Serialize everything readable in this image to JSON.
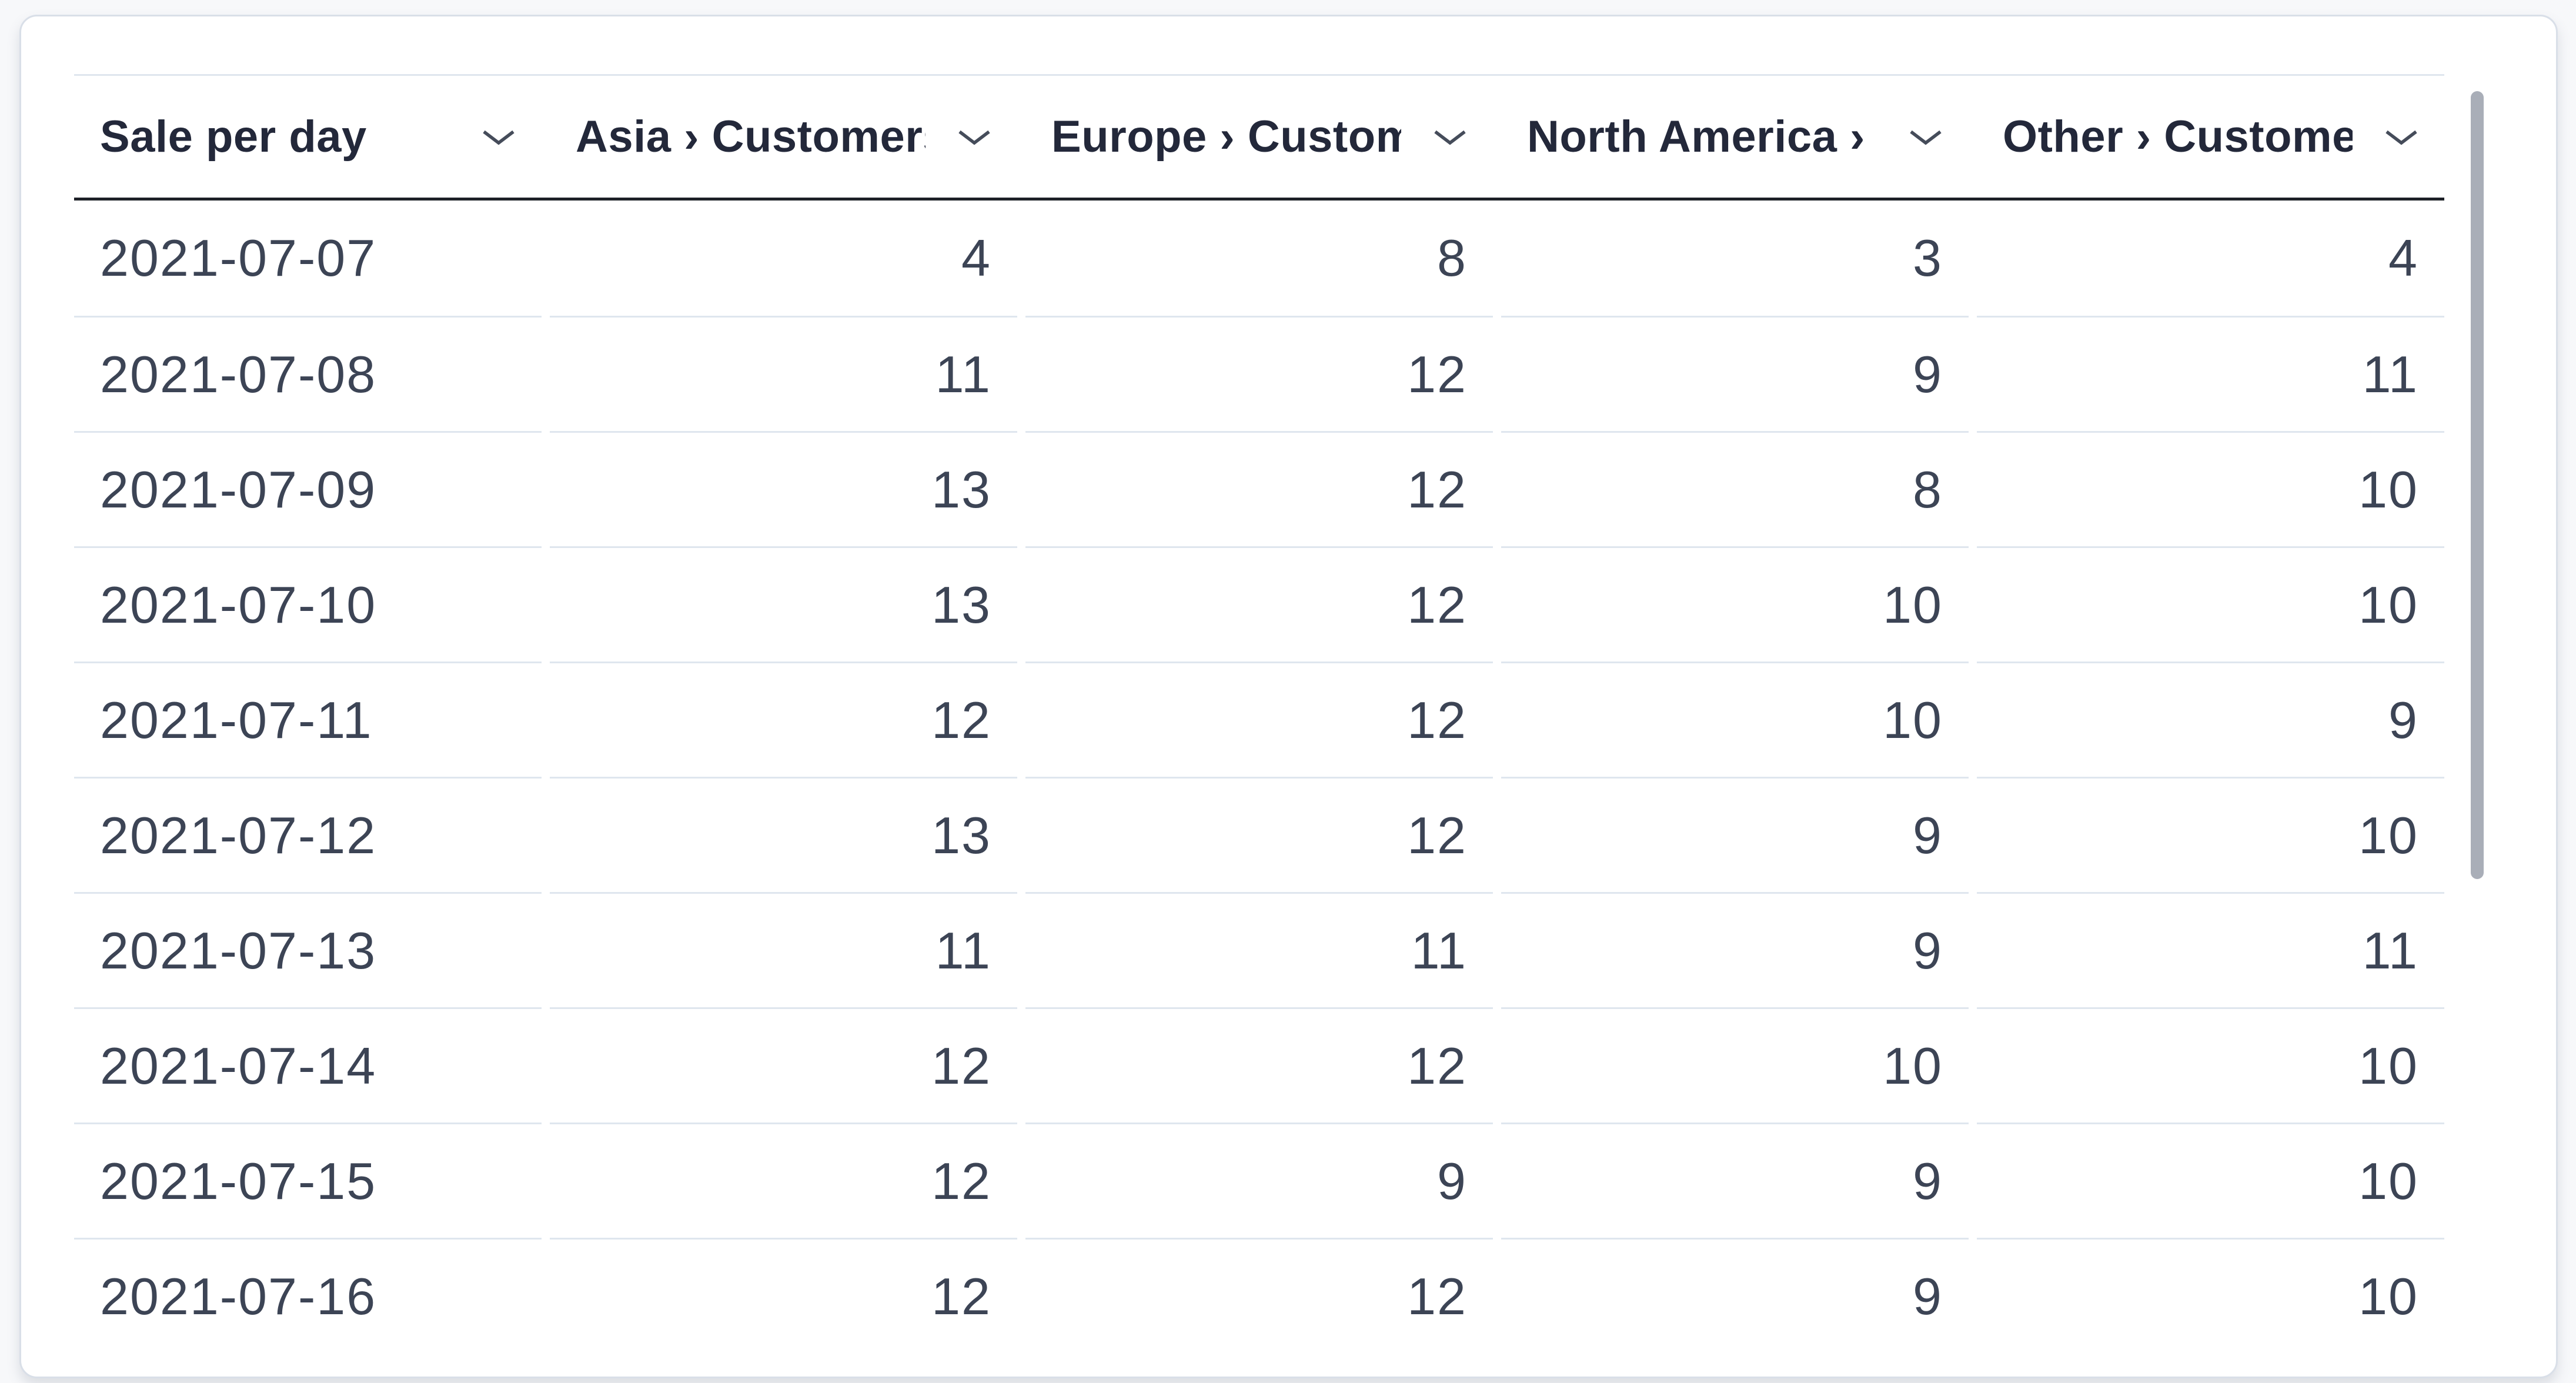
{
  "card": {
    "type": "table-visualization"
  },
  "table": {
    "columns": [
      {
        "label": "Sale per day",
        "align": "left"
      },
      {
        "label": "Asia › Customers",
        "align": "right"
      },
      {
        "label": "Europe › Customers",
        "align": "right"
      },
      {
        "label": "North America › Customers",
        "align": "right"
      },
      {
        "label": "Other › Customers",
        "align": "right"
      }
    ],
    "rows": [
      [
        "2021-07-07",
        "4",
        "8",
        "3",
        "4"
      ],
      [
        "2021-07-08",
        "11",
        "12",
        "9",
        "11"
      ],
      [
        "2021-07-09",
        "13",
        "12",
        "8",
        "10"
      ],
      [
        "2021-07-10",
        "13",
        "12",
        "10",
        "10"
      ],
      [
        "2021-07-11",
        "12",
        "12",
        "10",
        "9"
      ],
      [
        "2021-07-12",
        "13",
        "12",
        "9",
        "10"
      ],
      [
        "2021-07-13",
        "11",
        "11",
        "9",
        "11"
      ],
      [
        "2021-07-14",
        "12",
        "12",
        "10",
        "10"
      ],
      [
        "2021-07-15",
        "12",
        "9",
        "9",
        "10"
      ],
      [
        "2021-07-16",
        "12",
        "12",
        "9",
        "10"
      ]
    ]
  },
  "icons": {
    "header_sort": "chevron-down-icon"
  },
  "scrollbar": {
    "visible": true
  },
  "colors": {
    "page_background": "#f7f8fa",
    "card_background": "#ffffff",
    "card_border": "#d9dfe8",
    "header_text": "#23283a",
    "header_underline": "#1d2027",
    "row_separator": "#dfe6ee",
    "cell_text": "#3c4455",
    "scrollbar_thumb": "#a9aeb8"
  }
}
